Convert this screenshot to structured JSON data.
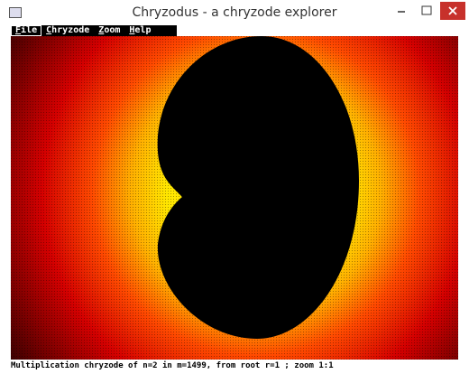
{
  "window": {
    "title": "Chryzodus - a chryzode explorer"
  },
  "menu": {
    "items": [
      "File",
      "Chryzode",
      "Zoom",
      "Help"
    ]
  },
  "status_bar": {
    "text": "Multiplication chryzode of n=2 in m=1499, from root r=1 ; zoom 1:1"
  }
}
